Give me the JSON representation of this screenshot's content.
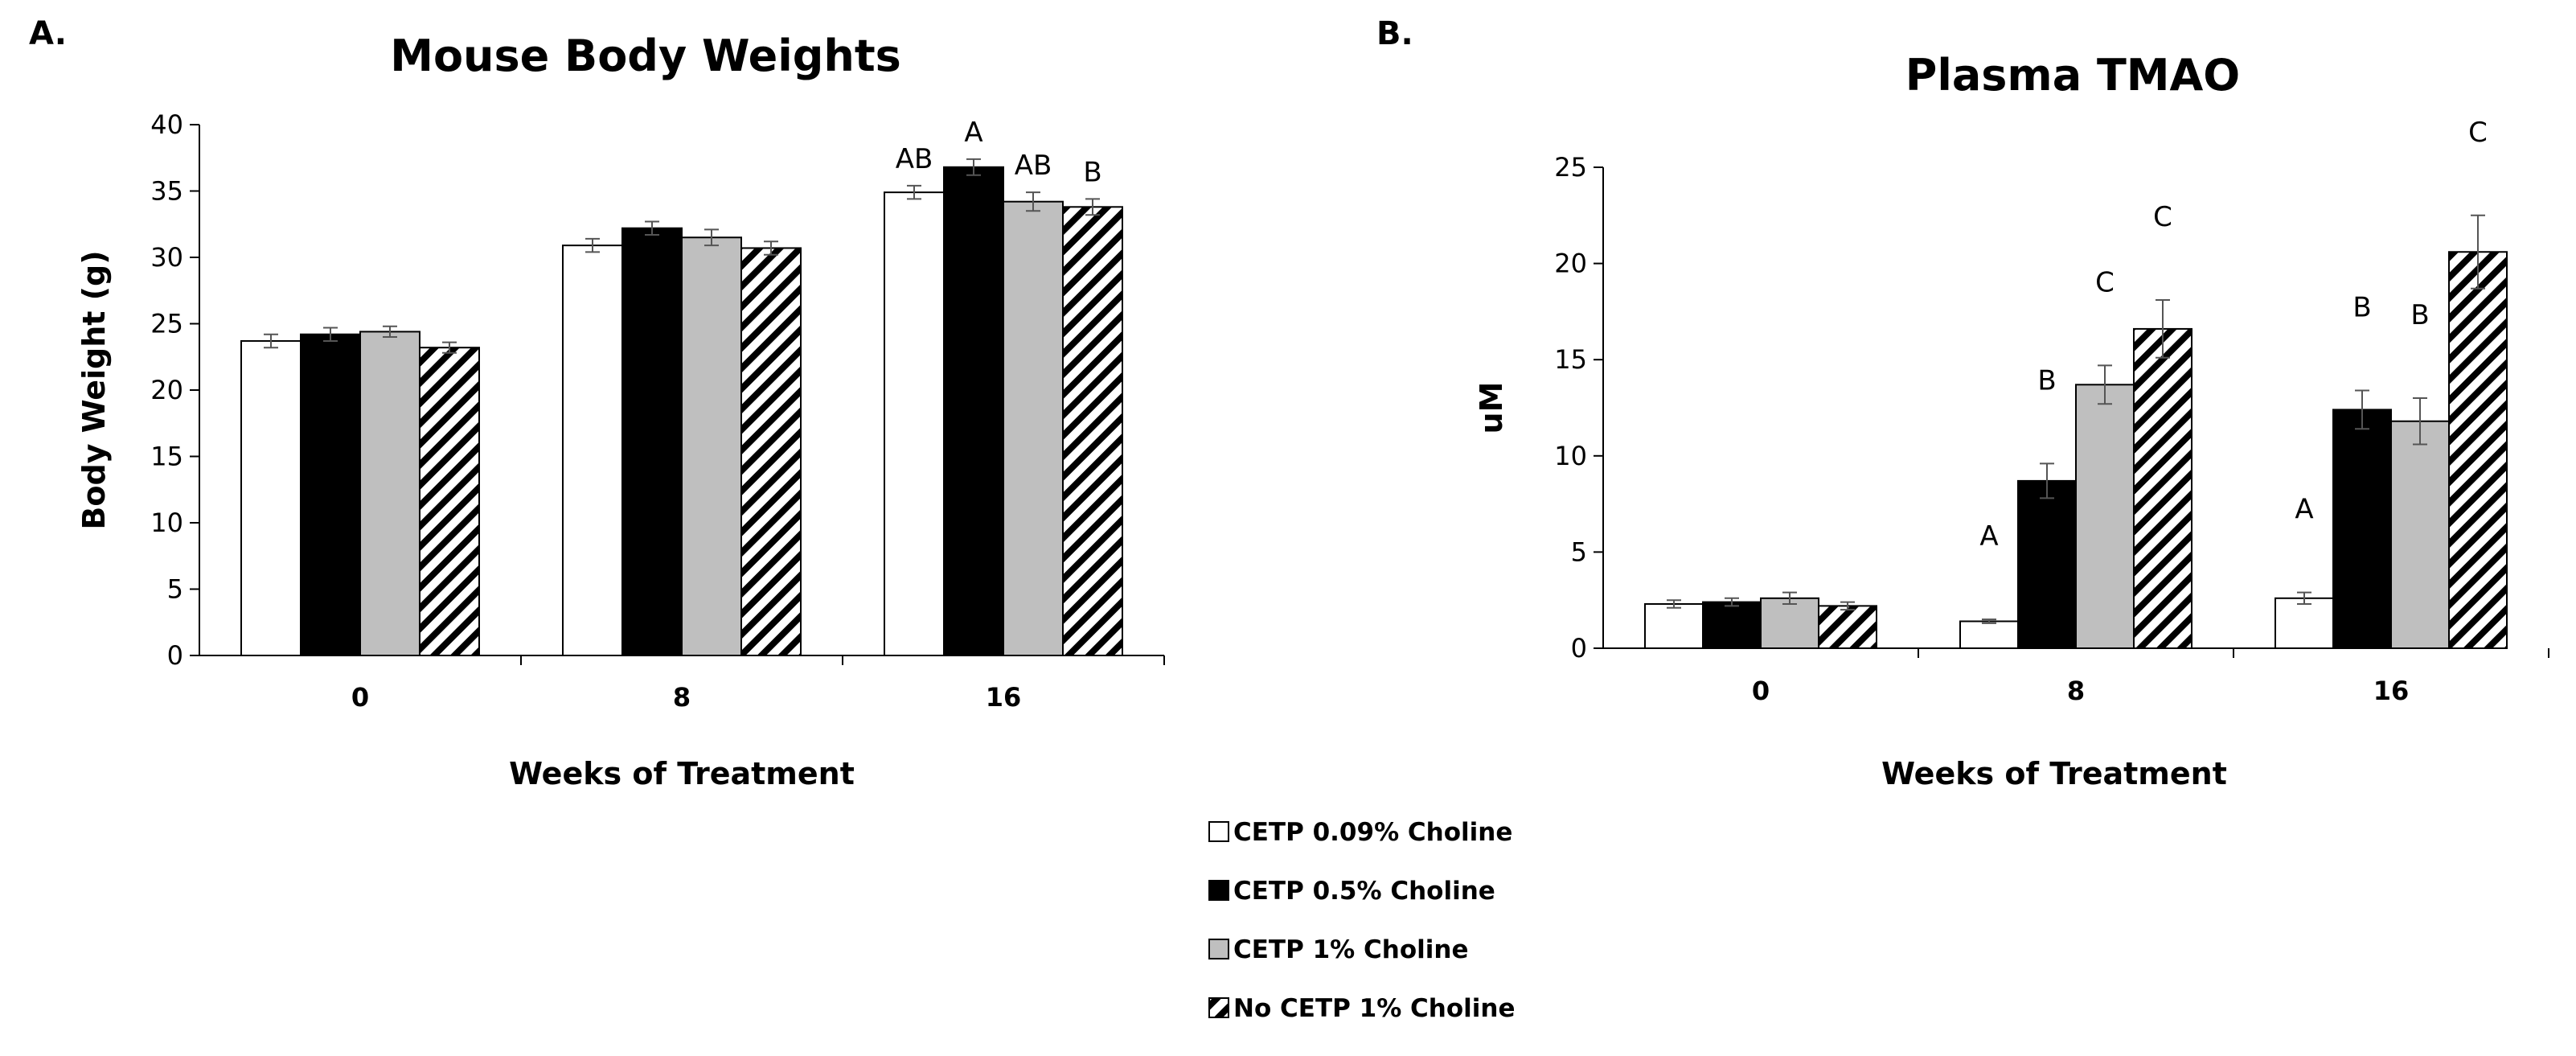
{
  "panels": {
    "a_label": "A.",
    "b_label": "B."
  },
  "legend": [
    {
      "label": "CETP 0.09% Choline",
      "fill": "white"
    },
    {
      "label": "CETP 0.5% Choline",
      "fill": "black"
    },
    {
      "label": "CETP 1% Choline",
      "fill": "gray"
    },
    {
      "label": "No CETP 1% Choline",
      "fill": "hatch"
    }
  ],
  "colors": {
    "white": "#ffffff",
    "black": "#000000",
    "gray": "#bfbfbf",
    "stroke": "#000000",
    "error": "#555555"
  },
  "chart_data": [
    {
      "type": "bar",
      "title": "Mouse Body Weights",
      "xlabel": "Weeks of Treatment",
      "ylabel": "Body Weight (g)",
      "ylim": [
        0,
        40
      ],
      "yticks": [
        0,
        5,
        10,
        15,
        20,
        25,
        30,
        35,
        40
      ],
      "categories": [
        "0",
        "8",
        "16"
      ],
      "series": [
        {
          "name": "CETP 0.09% Choline",
          "values": [
            23.7,
            30.9,
            34.9
          ],
          "errors": [
            0.5,
            0.5,
            0.5
          ],
          "sig": [
            "",
            "",
            "AB"
          ]
        },
        {
          "name": "CETP 0.5% Choline",
          "values": [
            24.2,
            32.2,
            36.8
          ],
          "errors": [
            0.5,
            0.5,
            0.6
          ],
          "sig": [
            "",
            "",
            "A"
          ]
        },
        {
          "name": "CETP 1% Choline",
          "values": [
            24.4,
            31.5,
            34.2
          ],
          "errors": [
            0.4,
            0.6,
            0.7
          ],
          "sig": [
            "",
            "",
            "AB"
          ]
        },
        {
          "name": "No CETP 1% Choline",
          "values": [
            23.2,
            30.7,
            33.8
          ],
          "errors": [
            0.4,
            0.5,
            0.6
          ],
          "sig": [
            "",
            "",
            "B"
          ]
        }
      ]
    },
    {
      "type": "bar",
      "title": "Plasma TMAO",
      "xlabel": "Weeks of Treatment",
      "ylabel": "uM",
      "ylim": [
        0,
        25
      ],
      "yticks": [
        0,
        5,
        10,
        15,
        20,
        25
      ],
      "categories": [
        "0",
        "8",
        "16"
      ],
      "series": [
        {
          "name": "CETP 0.09% Choline",
          "values": [
            2.3,
            1.4,
            2.6
          ],
          "errors": [
            0.2,
            0.1,
            0.3
          ],
          "sig": [
            "",
            "A",
            "A"
          ]
        },
        {
          "name": "CETP 0.5% Choline",
          "values": [
            2.4,
            8.7,
            12.4
          ],
          "errors": [
            0.2,
            0.9,
            1.0
          ],
          "sig": [
            "",
            "B",
            "B"
          ]
        },
        {
          "name": "CETP 1% Choline",
          "values": [
            2.6,
            13.7,
            11.8
          ],
          "errors": [
            0.3,
            1.0,
            1.2
          ],
          "sig": [
            "",
            "C",
            "B"
          ]
        },
        {
          "name": "No CETP 1% Choline",
          "values": [
            2.2,
            16.6,
            20.6
          ],
          "errors": [
            0.2,
            1.5,
            1.9
          ],
          "sig": [
            "",
            "C",
            "C"
          ]
        }
      ]
    }
  ]
}
